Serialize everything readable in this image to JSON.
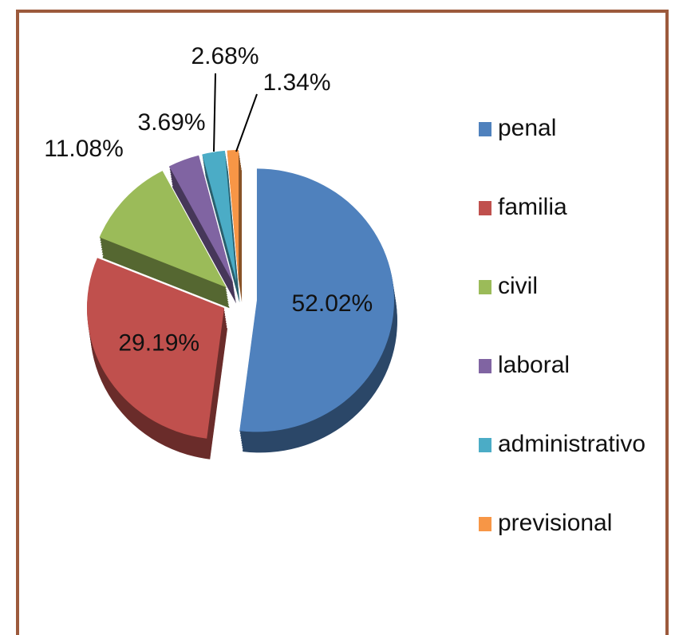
{
  "chart_data": {
    "type": "pie",
    "categories": [
      "penal",
      "familia",
      "civil",
      "laboral",
      "administrativo",
      "previsional"
    ],
    "values": [
      52.02,
      29.19,
      11.08,
      3.69,
      2.68,
      1.34
    ],
    "value_labels": [
      "52.02%",
      "29.19%",
      "11.08%",
      "3.69%",
      "2.68%",
      "1.34%"
    ],
    "colors": [
      "#4f81bd",
      "#c0504d",
      "#9bbb59",
      "#8064a2",
      "#4bacc6",
      "#f79646"
    ],
    "legend": "right"
  }
}
